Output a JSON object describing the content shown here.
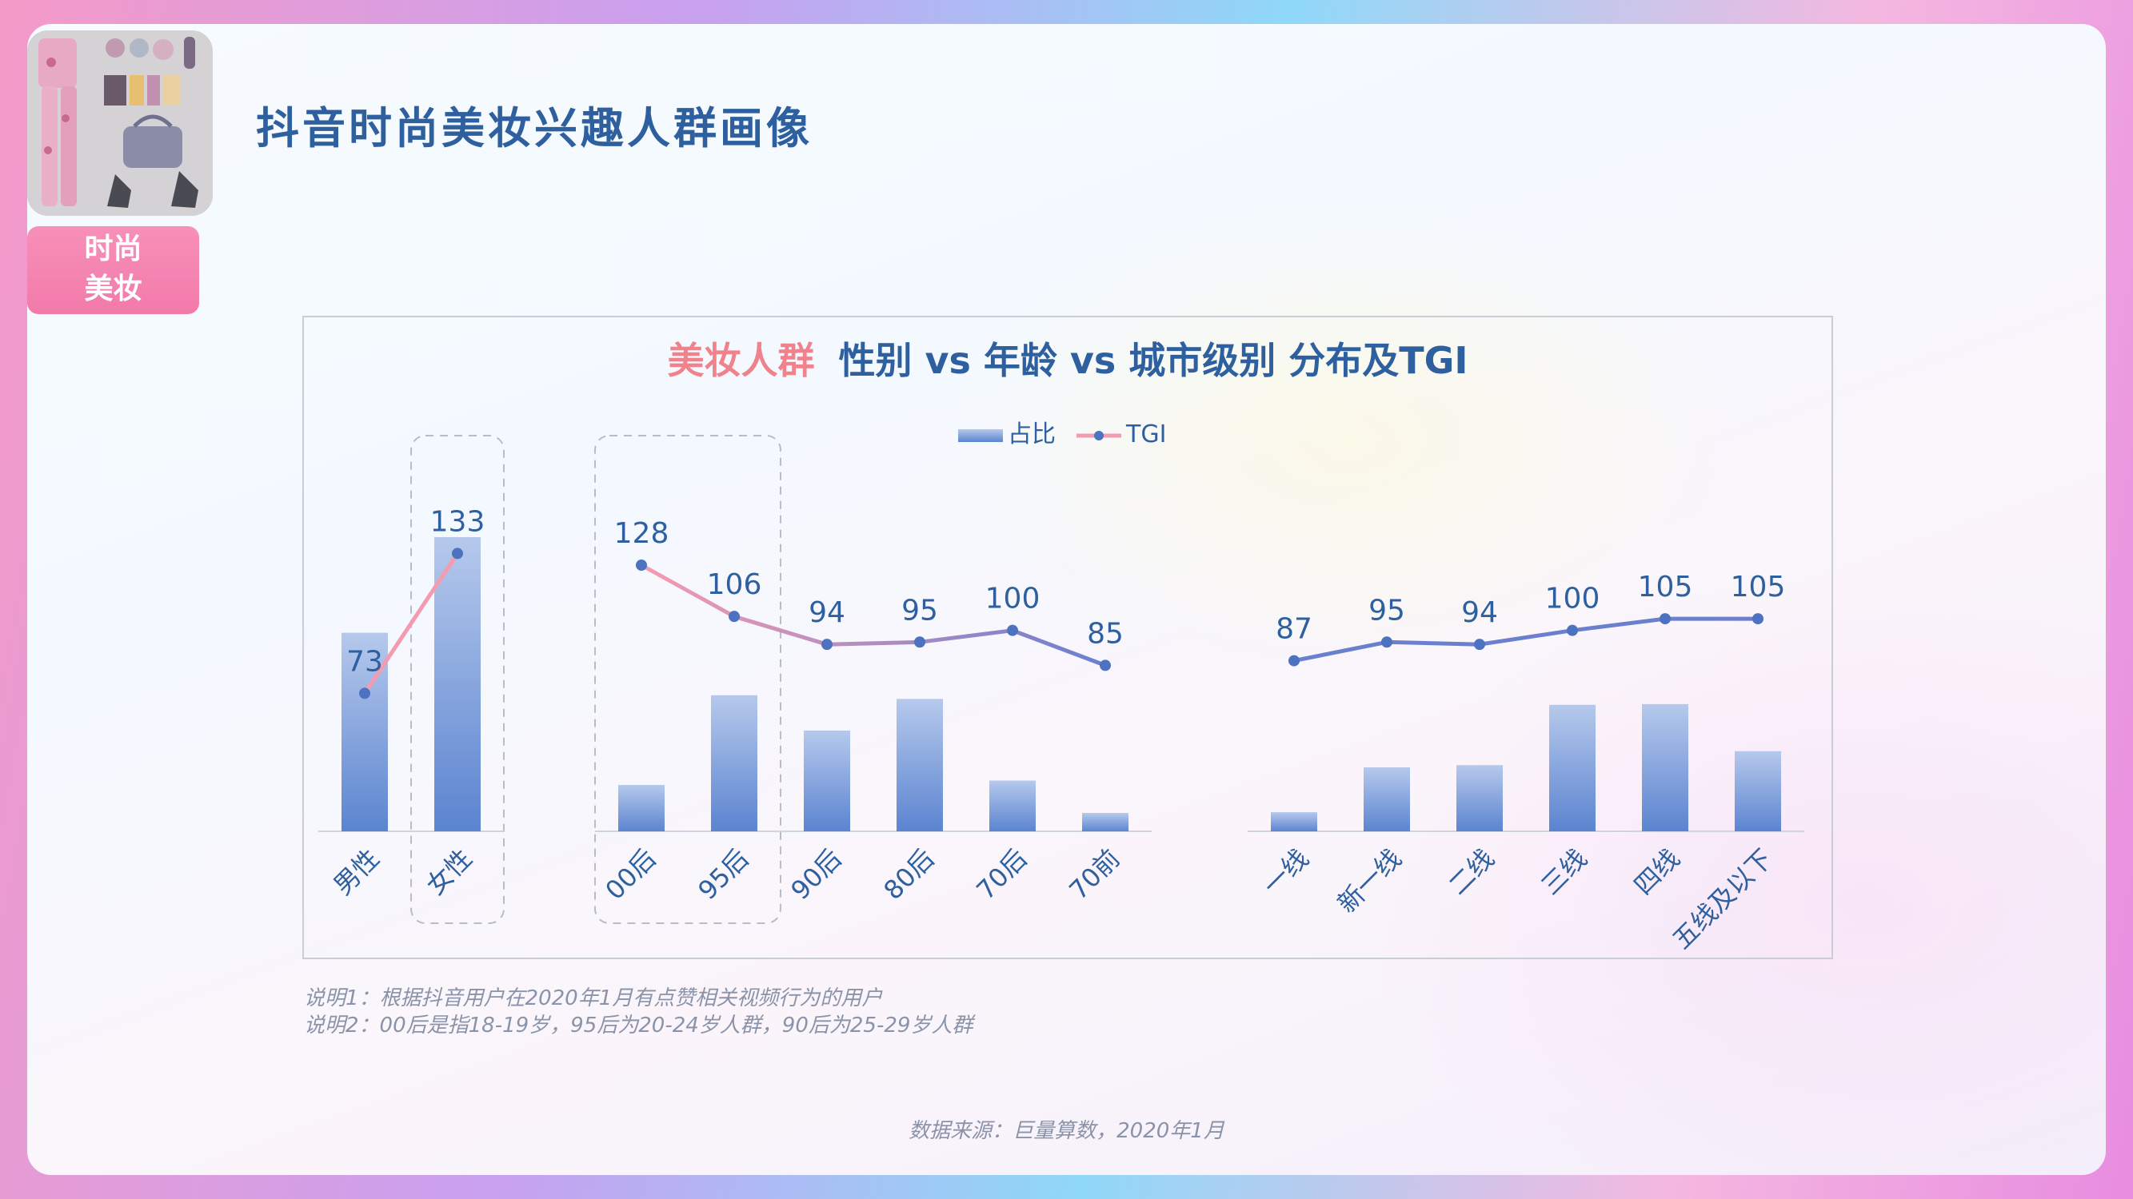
{
  "header": {
    "title": "抖音时尚美妆兴趣人群画像",
    "badge_line1": "时尚",
    "badge_line2": "美妆"
  },
  "chart_data": {
    "type": "bar",
    "title_highlight": "美妆人群",
    "title_rest": "性别 vs 年龄 vs 城市级别 分布及TGI",
    "legend": {
      "bar": "占比",
      "line": "TGI",
      "position": "top"
    },
    "categories": [
      "男性",
      "女性",
      "00后",
      "95后",
      "90后",
      "80后",
      "70后",
      "70前",
      "一线",
      "新一线",
      "二线",
      "三线",
      "四线",
      "五线及以下"
    ],
    "groups": [
      {
        "name": "gender",
        "start": 0,
        "end": 1
      },
      {
        "name": "age",
        "start": 2,
        "end": 7
      },
      {
        "name": "city",
        "start": 8,
        "end": 13
      }
    ],
    "series": [
      {
        "name": "占比",
        "type": "bar",
        "values": [
          0.27,
          0.4,
          0.063,
          0.185,
          0.137,
          0.18,
          0.069,
          0.025,
          0.026,
          0.087,
          0.09,
          0.172,
          0.173,
          0.109
        ]
      },
      {
        "name": "TGI",
        "type": "line",
        "values": [
          73,
          133,
          128,
          106,
          94,
          95,
          100,
          85,
          87,
          95,
          94,
          100,
          105,
          105
        ]
      }
    ],
    "bar_ylim": [
      0,
      0.5
    ],
    "line_ylim": [
      -100,
      200
    ],
    "highlight_boxes": [
      [
        1,
        1
      ],
      [
        2,
        3
      ]
    ],
    "grid": false
  },
  "notes": {
    "line1": "说明1：根据抖音用户在2020年1月有点赞相关视频行为的用户",
    "line2": "说明2：00后是指18-19岁，95后为20-24岁人群，90后为25-29岁人群"
  },
  "source": "数据来源：巨量算数，2020年1月",
  "colors": {
    "title": "#2e5f9e",
    "highlight": "#f0828c",
    "bar_top": "#b6c9ec",
    "bar_bottom": "#5b84d0",
    "line_start": "#f59bb0",
    "line_end": "#6b7fcf",
    "point": "#4c72c0",
    "label": "#2e5f9e"
  }
}
